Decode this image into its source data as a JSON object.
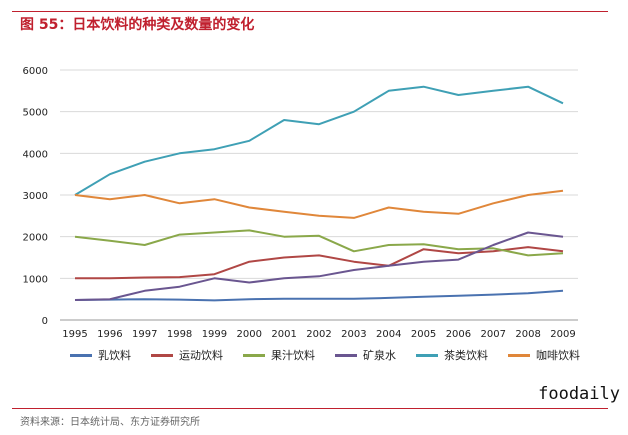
{
  "title": "图 55：日本饮料的种类及数量的变化",
  "source": "资料来源：日本统计局、东方证券研究所",
  "watermark": "foodaily",
  "chart_data": {
    "type": "line",
    "x": [
      "1995",
      "1996",
      "1997",
      "1998",
      "1999",
      "2000",
      "2001",
      "2002",
      "2003",
      "2004",
      "2005",
      "2006",
      "2007",
      "2008",
      "2009"
    ],
    "ylim": [
      0,
      6000
    ],
    "yticks": [
      "0",
      "1000",
      "2000",
      "3000",
      "4000",
      "5000",
      "6000"
    ],
    "grid": true,
    "legend_position": "bottom",
    "series": [
      {
        "name": "乳饮料",
        "color": "#4a72b0",
        "values": [
          480,
          490,
          500,
          490,
          470,
          500,
          510,
          510,
          510,
          530,
          560,
          580,
          610,
          640,
          700
        ]
      },
      {
        "name": "运动饮料",
        "color": "#b04745",
        "values": [
          1000,
          1000,
          1020,
          1030,
          1100,
          1400,
          1500,
          1550,
          1400,
          1300,
          1700,
          1600,
          1650,
          1750,
          1650
        ]
      },
      {
        "name": "果汁饮料",
        "color": "#8aa84a",
        "values": [
          2000,
          1900,
          1800,
          2050,
          2100,
          2150,
          2000,
          2020,
          1650,
          1800,
          1820,
          1700,
          1720,
          1550,
          1600
        ]
      },
      {
        "name": "矿泉水",
        "color": "#6a5690",
        "values": [
          480,
          500,
          700,
          800,
          1000,
          900,
          1000,
          1050,
          1200,
          1300,
          1400,
          1450,
          1800,
          2100,
          2000
        ]
      },
      {
        "name": "茶类饮料",
        "color": "#3fa0b5",
        "values": [
          3000,
          3500,
          3800,
          4000,
          4100,
          4300,
          4800,
          4700,
          5000,
          5500,
          5600,
          5400,
          5500,
          5600,
          5200
        ]
      },
      {
        "name": "咖啡饮料",
        "color": "#e0873a",
        "values": [
          3000,
          2900,
          3000,
          2800,
          2900,
          2700,
          2600,
          2500,
          2450,
          2700,
          2600,
          2550,
          2800,
          3000,
          3100
        ]
      }
    ]
  }
}
